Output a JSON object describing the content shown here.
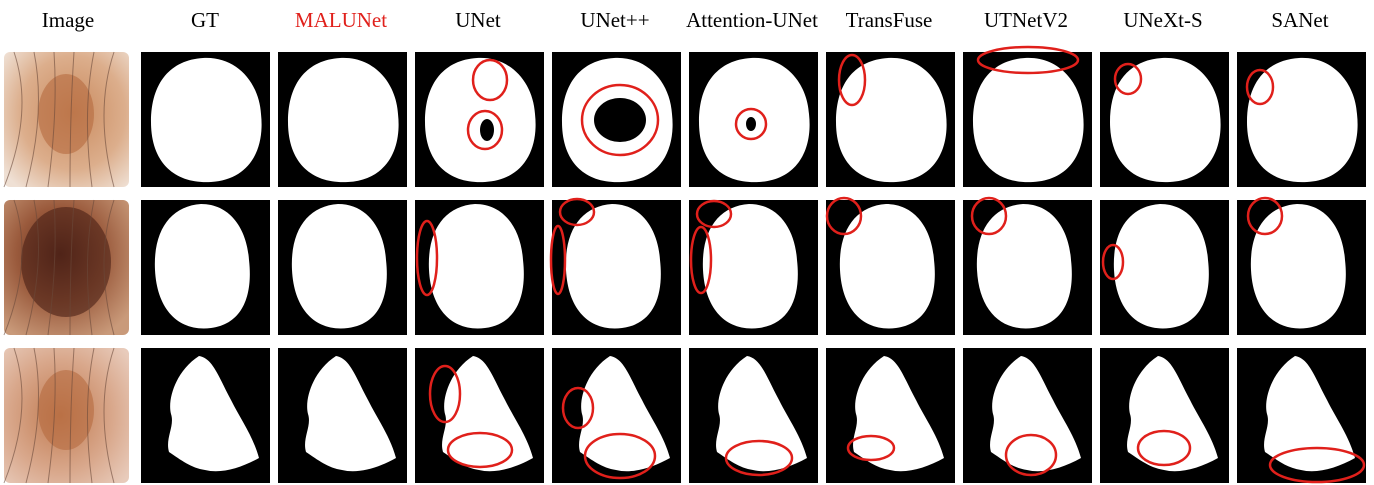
{
  "columns": [
    "Image",
    "GT",
    "MALUNet",
    "UNet",
    "UNet++",
    "Attention-UNet",
    "TransFuse",
    "UTNetV2",
    "UNeXt-S",
    "SANet"
  ]
}
